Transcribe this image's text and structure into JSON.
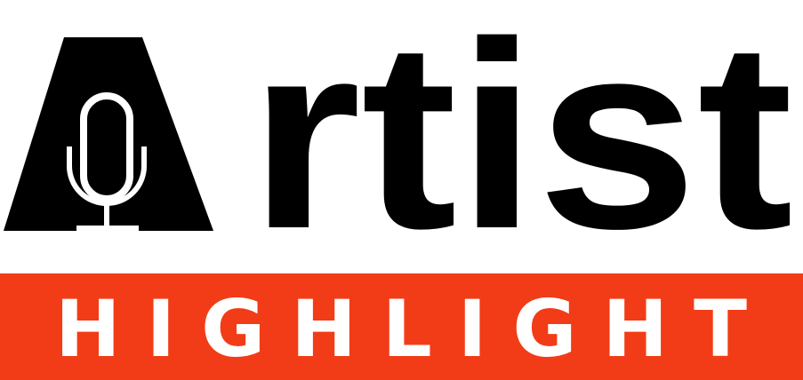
{
  "logo": {
    "word": "rtist",
    "banner": "HIGHLIGHT"
  }
}
